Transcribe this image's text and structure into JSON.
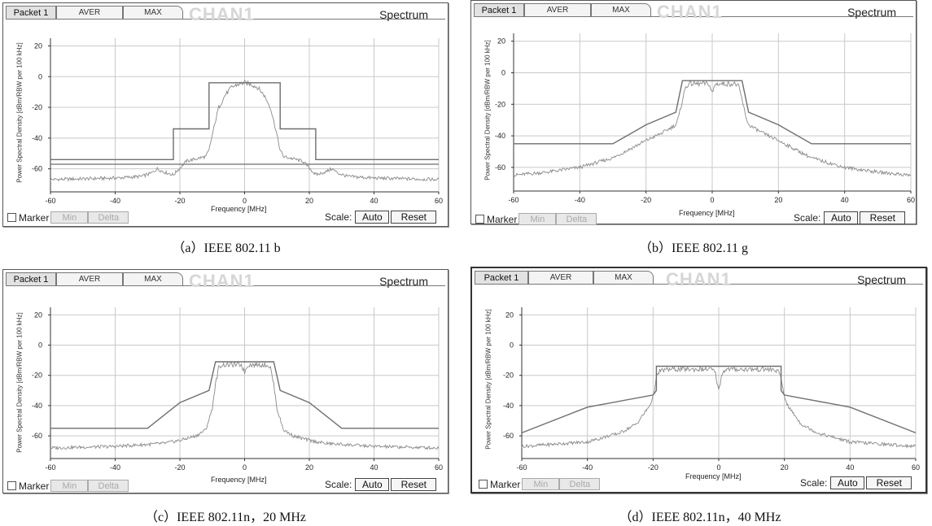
{
  "ui": {
    "tabs": [
      "Packet 1",
      "AVER",
      "MAX"
    ],
    "watermark": "CHAN1",
    "panel_title": "Spectrum",
    "marker_label": "Marker",
    "min_label": "Min",
    "delta_label": "Delta",
    "scale_label": "Scale:",
    "auto_label": "Auto",
    "reset_label": "Reset",
    "ylabel": "Power Spectral Density [dBm/RBW per 100 kHz]",
    "xlabel": "Frequency [MHz]"
  },
  "captions": [
    "（a）IEEE 802.11 b",
    "（b）IEEE 802.11 g",
    "（c）IEEE 802.11n，20 MHz",
    "（d）IEEE 802.11n，40 MHz"
  ],
  "colors": {
    "trace": "#8a8a8a",
    "mask": "#6e6e6e",
    "grid": "#c9c9c9",
    "axis": "#333333"
  },
  "chart_data": [
    {
      "type": "line",
      "xlim": [
        -60,
        60
      ],
      "ylim": [
        -75,
        25
      ],
      "xticks": [
        -60,
        -40,
        -20,
        0,
        20,
        40,
        60
      ],
      "yticks": [
        20,
        0,
        -20,
        -40,
        -60
      ],
      "grid": true,
      "mask": {
        "x": [
          -60,
          -22,
          -22,
          -11,
          -11,
          11,
          11,
          22,
          22,
          60
        ],
        "y": [
          -54,
          -54,
          -34,
          -34,
          -4,
          -4,
          -34,
          -34,
          -54,
          -54
        ]
      },
      "lines": [
        {
          "x": [
            -60,
            60
          ],
          "y": [
            -57,
            -57
          ]
        }
      ],
      "spectrum": {
        "x": [
          -60,
          -40,
          -32,
          -29,
          -27,
          -25,
          -22,
          -18,
          -14,
          -12,
          -11,
          -10,
          -8,
          -6,
          -4,
          -2,
          0,
          2,
          4,
          6,
          8,
          10,
          11,
          12,
          14,
          18,
          22,
          25,
          27,
          29,
          32,
          40,
          60
        ],
        "y": [
          -67,
          -66,
          -65,
          -63,
          -60,
          -62,
          -64,
          -55,
          -53,
          -52,
          -48,
          -38,
          -20,
          -12,
          -7,
          -5,
          -4,
          -5,
          -7,
          -12,
          -20,
          -38,
          -48,
          -52,
          -53,
          -55,
          -64,
          -62,
          -60,
          -63,
          -65,
          -66,
          -67
        ]
      }
    },
    {
      "type": "line",
      "xlim": [
        -60,
        60
      ],
      "ylim": [
        -75,
        25
      ],
      "xticks": [
        -60,
        -40,
        -20,
        0,
        20,
        40,
        60
      ],
      "yticks": [
        20,
        0,
        -20,
        -40,
        -60
      ],
      "grid": true,
      "mask": {
        "x": [
          -60,
          -30,
          -20,
          -11,
          -9,
          9,
          11,
          20,
          30,
          60
        ],
        "y": [
          -45,
          -45,
          -33,
          -25,
          -5,
          -5,
          -25,
          -33,
          -45,
          -45
        ]
      },
      "lines": [],
      "spectrum": {
        "x": [
          -60,
          -50,
          -40,
          -30,
          -20,
          -15,
          -11,
          -10,
          -9,
          -8,
          -7,
          -4,
          -1,
          0,
          1,
          4,
          7,
          8,
          9,
          10,
          11,
          15,
          20,
          30,
          40,
          50,
          60
        ],
        "y": [
          -65,
          -63,
          -60,
          -54,
          -43,
          -38,
          -33,
          -27,
          -17,
          -9,
          -7,
          -7,
          -7,
          -13,
          -7,
          -7,
          -7,
          -9,
          -17,
          -27,
          -33,
          -38,
          -43,
          -54,
          -60,
          -63,
          -65
        ]
      }
    },
    {
      "type": "line",
      "xlim": [
        -60,
        60
      ],
      "ylim": [
        -75,
        25
      ],
      "xticks": [
        -60,
        -40,
        -20,
        0,
        20,
        40,
        60
      ],
      "yticks": [
        20,
        0,
        -20,
        -40,
        -60
      ],
      "grid": true,
      "mask": {
        "x": [
          -60,
          -30,
          -20,
          -11,
          -9,
          9,
          11,
          20,
          30,
          60
        ],
        "y": [
          -55,
          -55,
          -38,
          -30,
          -11,
          -11,
          -30,
          -38,
          -55,
          -55
        ]
      },
      "lines": [],
      "spectrum": {
        "x": [
          -60,
          -40,
          -25,
          -20,
          -15,
          -12,
          -10,
          -9,
          -8,
          -7,
          -4,
          -1,
          0,
          1,
          4,
          7,
          8,
          9,
          10,
          12,
          15,
          20,
          25,
          40,
          60
        ],
        "y": [
          -68,
          -67,
          -65,
          -63,
          -60,
          -56,
          -42,
          -26,
          -15,
          -13,
          -13,
          -13,
          -18,
          -13,
          -13,
          -13,
          -15,
          -26,
          -42,
          -56,
          -60,
          -63,
          -65,
          -67,
          -68
        ]
      }
    },
    {
      "type": "line",
      "xlim": [
        -60,
        60
      ],
      "ylim": [
        -75,
        25
      ],
      "xticks": [
        -60,
        -40,
        -20,
        0,
        20,
        40,
        60
      ],
      "yticks": [
        20,
        0,
        -20,
        -40,
        -60
      ],
      "grid": true,
      "mask": {
        "x": [
          -60,
          -40,
          -20,
          -19,
          -19,
          19,
          19,
          20,
          40,
          60
        ],
        "y": [
          -58,
          -41,
          -33,
          -30,
          -14,
          -14,
          -30,
          -33,
          -41,
          -58
        ]
      },
      "lines": [],
      "spectrum": {
        "x": [
          -60,
          -40,
          -30,
          -25,
          -21,
          -20,
          -19,
          -18,
          -15,
          -5,
          -2,
          -1,
          0,
          1,
          2,
          5,
          15,
          18,
          19,
          20,
          21,
          25,
          30,
          40,
          60
        ],
        "y": [
          -67,
          -64,
          -58,
          -52,
          -40,
          -34,
          -22,
          -17,
          -16,
          -16,
          -16,
          -19,
          -30,
          -19,
          -16,
          -16,
          -16,
          -17,
          -22,
          -34,
          -40,
          -52,
          -58,
          -64,
          -67
        ]
      }
    }
  ]
}
